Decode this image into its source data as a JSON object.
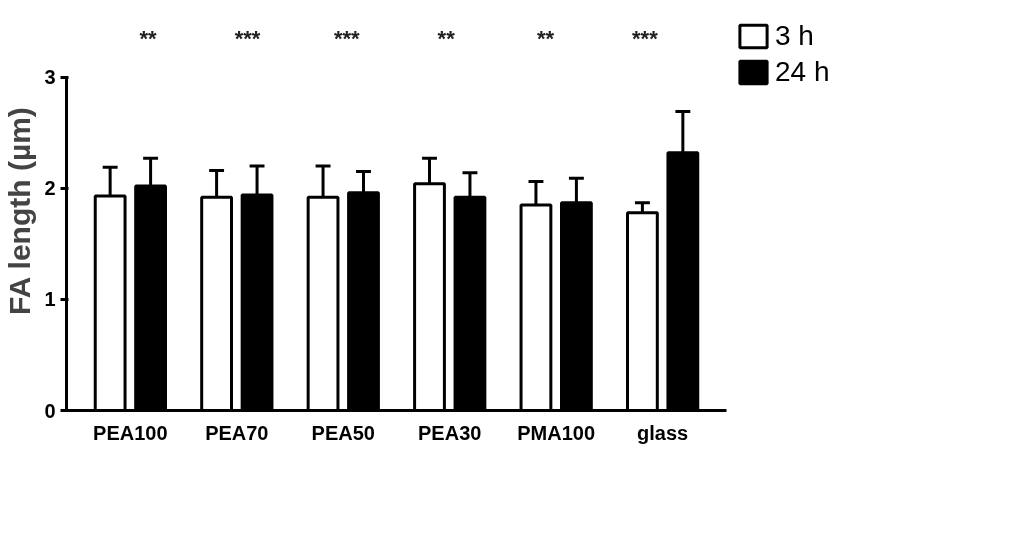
{
  "chart_data": {
    "type": "bar",
    "ylabel": "FA length (µm)",
    "categories": [
      "PEA100",
      "PEA70",
      "PEA50",
      "PEA30",
      "PMA100",
      "glass"
    ],
    "series": [
      {
        "name": "3 h",
        "color": "#ffffff",
        "values": [
          1.93,
          1.92,
          1.92,
          2.04,
          1.85,
          1.78
        ],
        "errors": [
          0.26,
          0.24,
          0.28,
          0.23,
          0.21,
          0.09
        ]
      },
      {
        "name": "24 h",
        "color": "#000000",
        "values": [
          2.02,
          1.94,
          1.96,
          1.92,
          1.87,
          2.32
        ],
        "errors": [
          0.25,
          0.26,
          0.19,
          0.22,
          0.22,
          0.37
        ]
      }
    ],
    "ylim": [
      0,
      3
    ],
    "yticks": [
      0,
      1,
      2,
      3
    ],
    "grid": false,
    "legend": "top right",
    "annotations": [
      "**",
      "***",
      "***",
      "**",
      "**",
      "***"
    ]
  }
}
